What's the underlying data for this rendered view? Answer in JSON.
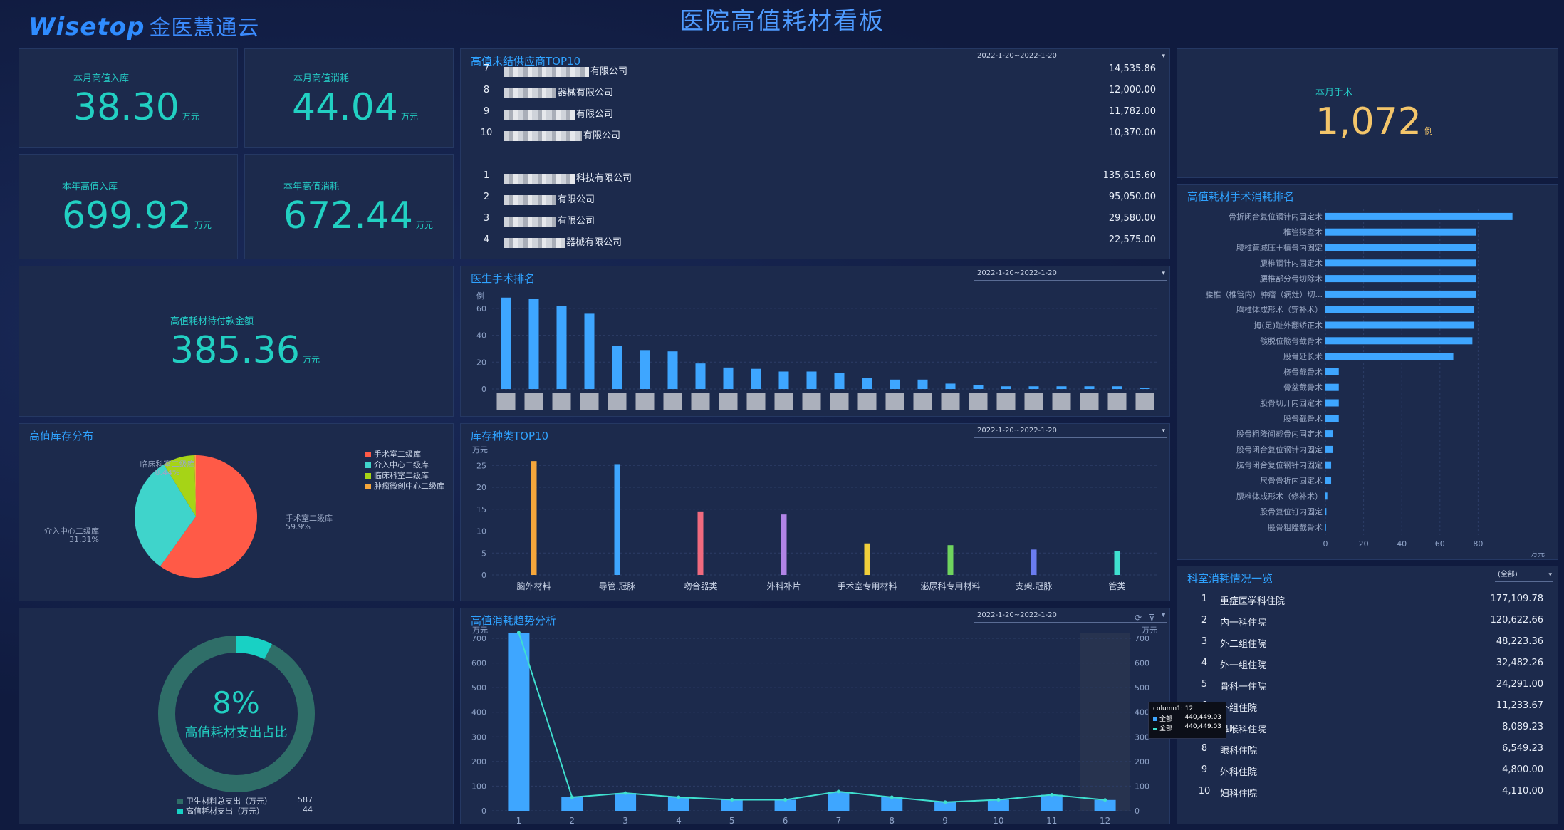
{
  "header": {
    "logo_text": "Wisetop",
    "logo_cn": "金医慧通云",
    "title": "医院高值耗材看板"
  },
  "kpis": {
    "month_in": {
      "label": "本月高值入库",
      "value": "38.30",
      "unit": "万元"
    },
    "month_use": {
      "label": "本月高值消耗",
      "value": "44.04",
      "unit": "万元"
    },
    "year_in": {
      "label": "本年高值入库",
      "value": "699.92",
      "unit": "万元"
    },
    "year_use": {
      "label": "本年高值消耗",
      "value": "672.44",
      "unit": "万元"
    },
    "unpaid": {
      "label": "高值耗材待付款金额",
      "value": "385.36",
      "unit": "万元"
    },
    "surgery": {
      "label": "本月手术",
      "value": "1,072",
      "unit": "例"
    }
  },
  "supplier": {
    "title": "高值未结供应商TOP10",
    "date": "2022-1-20~2022-1-20",
    "rows": [
      {
        "rank": "7",
        "name": "有限公司",
        "value": "14,535.86"
      },
      {
        "rank": "8",
        "name": "器械有限公司",
        "value": "12,000.00"
      },
      {
        "rank": "9",
        "name": "有限公司",
        "value": "11,782.00"
      },
      {
        "rank": "10",
        "name": "有限公司",
        "value": "10,370.00"
      },
      {
        "rank": "1",
        "name": "科技有限公司",
        "value": "135,615.60"
      },
      {
        "rank": "2",
        "name": "有限公司",
        "value": "95,050.00"
      },
      {
        "rank": "3",
        "name": "有限公司",
        "value": "29,580.00"
      },
      {
        "rank": "4",
        "name": "器械有限公司",
        "value": "22,575.00"
      }
    ]
  },
  "doctor": {
    "title": "医生手术排名",
    "date": "2022-1-20~2022-1-20",
    "unit": "例",
    "chart_data": {
      "type": "bar",
      "ylim": [
        0,
        70
      ],
      "yticks": [
        "0",
        "20",
        "40",
        "60"
      ],
      "values": [
        68,
        67,
        62,
        56,
        32,
        29,
        28,
        19,
        16,
        15,
        13,
        13,
        12,
        8,
        7,
        7,
        4,
        3,
        2,
        2,
        2,
        2,
        2,
        1
      ],
      "color": "#3ea6ff"
    }
  },
  "inventory_dist": {
    "title": "高值库存分布",
    "chart_data": {
      "type": "pie",
      "slices": [
        {
          "name": "手术室二级库",
          "value": 59.9,
          "label": "59.9%",
          "color": "#ff5a47"
        },
        {
          "name": "介入中心二级库",
          "value": 31.31,
          "label": "31.31%",
          "color": "#3fd4cb"
        },
        {
          "name": "临床科室二级库",
          "value": 8.44,
          "label": "8.44%",
          "color": "#a6d416"
        },
        {
          "name": "肿瘤微创中心二级库",
          "value": 0.35,
          "label": "",
          "color": "#f5a63b"
        }
      ]
    }
  },
  "stock_top10": {
    "title": "库存种类TOP10",
    "date": "2022-1-20~2022-1-20",
    "unit": "万元",
    "chart_data": {
      "type": "bar",
      "ylim": [
        0,
        27
      ],
      "yticks": [
        "0",
        "5",
        "10",
        "15",
        "20",
        "25"
      ],
      "categories": [
        "脑外材料",
        "导管.冠脉",
        "吻合器类",
        "外科补片",
        "手术室专用材料",
        "泌尿科专用材料",
        "支架.冠脉",
        "管类"
      ],
      "values": [
        26,
        25.3,
        14.5,
        13.8,
        7.2,
        6.8,
        5.8,
        5.5
      ],
      "colors": [
        "#f5a63b",
        "#3ea6ff",
        "#f06a7e",
        "#b184e6",
        "#f1cf3b",
        "#6fd45e",
        "#6a7cf0",
        "#3fe0cf"
      ]
    }
  },
  "ratio": {
    "percent": "8%",
    "label": "高值耗材支出占比",
    "fraction": 0.075,
    "legend": [
      {
        "name": "卫生材料总支出（万元）",
        "value": "587",
        "color": "#2f6e68"
      },
      {
        "name": "高值耗材支出（万元）",
        "value": "44",
        "color": "#18d1c4"
      }
    ]
  },
  "trend": {
    "title": "高值消耗趋势分析",
    "date": "2022-1-20~2022-1-20",
    "unit_left": "万元",
    "unit_right": "万元",
    "chart_data": {
      "type": "bar",
      "categories": [
        "1",
        "2",
        "3",
        "4",
        "5",
        "6",
        "7",
        "8",
        "9",
        "10",
        "11",
        "12"
      ],
      "ylim": [
        0,
        700
      ],
      "yticks": [
        "0",
        "100",
        "200",
        "300",
        "400",
        "500",
        "600",
        "700"
      ],
      "series": [
        {
          "name": "全部",
          "values": [
            728,
            55,
            72,
            55,
            45,
            45,
            78,
            55,
            35,
            45,
            65,
            44
          ]
        },
        {
          "name": "全部",
          "values": [
            728,
            55,
            72,
            55,
            45,
            45,
            78,
            55,
            35,
            45,
            65,
            44
          ]
        }
      ]
    },
    "tooltip": {
      "title": "column1: 12",
      "rows": [
        {
          "name": "全部",
          "value": "440,449.03"
        },
        {
          "name": "全部",
          "value": "440,449.03"
        }
      ]
    }
  },
  "surgery_rank": {
    "title": "高值耗材手术消耗排名",
    "unit": "万元",
    "chart_data": {
      "type": "bar",
      "orientation": "horizontal",
      "xlim": [
        0,
        100
      ],
      "xticks": [
        "0",
        "20",
        "40",
        "60",
        "80"
      ],
      "categories": [
        "骨折闭合复位钢针内固定术",
        "椎管探查术",
        "腰椎管减压＋植骨内固定",
        "腰椎钢针内固定术",
        "腰椎部分骨切除术",
        "腰椎（椎管内）肿瘤（病灶）切...",
        "胸椎体成形术（穿补术）",
        "拇(足)趾外翻矫正术",
        "髋脱位髋骨截骨术",
        "股骨延长术",
        "桡骨截骨术",
        "骨盆截骨术",
        "股骨切开内固定术",
        "股骨截骨术",
        "股骨粗隆间截骨内固定术",
        "股骨闭合复位钢针内固定",
        "肱骨闭合复位钢针内固定",
        "尺骨骨折内固定术",
        "腰椎体成形术（修补术）",
        "股骨复位钉内固定",
        "股骨粗隆截骨术"
      ],
      "values": [
        98,
        79,
        79,
        79,
        79,
        79,
        78,
        78,
        77,
        67,
        7,
        7,
        7,
        7,
        4,
        4,
        3,
        3,
        1,
        0.5,
        0.3
      ]
    }
  },
  "dept": {
    "title": "科室消耗情况一览",
    "select": "(全部)",
    "rows": [
      {
        "rank": "1",
        "name": "重症医学科住院",
        "value": "177,109.78"
      },
      {
        "rank": "2",
        "name": "内一科住院",
        "value": "120,622.66"
      },
      {
        "rank": "3",
        "name": "外二组住院",
        "value": "48,223.36"
      },
      {
        "rank": "4",
        "name": "外一组住院",
        "value": "32,482.26"
      },
      {
        "rank": "5",
        "name": "骨科一住院",
        "value": "24,291.00"
      },
      {
        "rank": "6",
        "name": "外组住院",
        "value": "11,233.67"
      },
      {
        "rank": "7",
        "name": "鼻喉科住院",
        "value": "8,089.23"
      },
      {
        "rank": "8",
        "name": "眼科住院",
        "value": "6,549.23"
      },
      {
        "rank": "9",
        "name": "外科住院",
        "value": "4,800.00"
      },
      {
        "rank": "10",
        "name": "妇科住院",
        "value": "4,110.00"
      }
    ]
  }
}
